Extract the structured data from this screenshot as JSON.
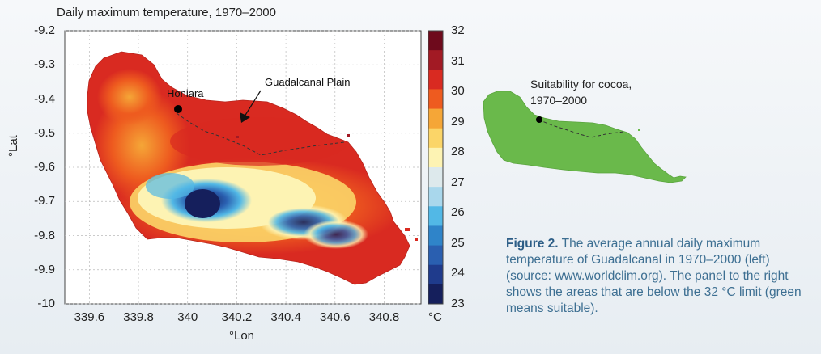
{
  "title": "Daily maximum temperature, 1970–2000",
  "map": {
    "xlabel": "°Lon",
    "ylabel": "°Lat",
    "xticks": [
      "339.6",
      "339.8",
      "340",
      "340.2",
      "340.4",
      "340.6",
      "340.8"
    ],
    "yticks": [
      "-9.2",
      "-9.3",
      "-9.4",
      "-9.5",
      "-9.6",
      "-9.7",
      "-9.8",
      "-9.9",
      "-10"
    ],
    "xlim": [
      339.5,
      340.95
    ],
    "ylim": [
      -10,
      -9.2
    ],
    "places": [
      {
        "name": "Honiara",
        "lon": 339.95,
        "lat": -9.43
      },
      {
        "name": "Guadalcanal Plain",
        "lon": 340.25,
        "lat": -9.54
      }
    ]
  },
  "colorbar": {
    "unit": "°C",
    "ticks": [
      "32",
      "31",
      "30",
      "29",
      "28",
      "27",
      "26",
      "25",
      "24",
      "23"
    ],
    "range": [
      23,
      32
    ],
    "colors": [
      "#6e0a1c",
      "#a21a24",
      "#d92a21",
      "#ee5b1f",
      "#f5a637",
      "#fbd568",
      "#fdf3b3",
      "#dde9ec",
      "#a9d7ec",
      "#52b8e6",
      "#2f84c9",
      "#2a5fb0",
      "#1f3b8c",
      "#151f5c"
    ]
  },
  "suitability": {
    "title_line1": "Suitability for cocoa,",
    "title_line2": "1970–2000",
    "color": "#6ab94b",
    "legend_meaning": "green means suitable"
  },
  "caption": {
    "label": "Figure 2.",
    "text": "The average annual daily maximum temperature of Guadalcanal in 1970–2000 (left) (source: www.worldclim.org). The panel to the right shows the areas that are below the 32 °C limit (green means suitable)."
  }
}
